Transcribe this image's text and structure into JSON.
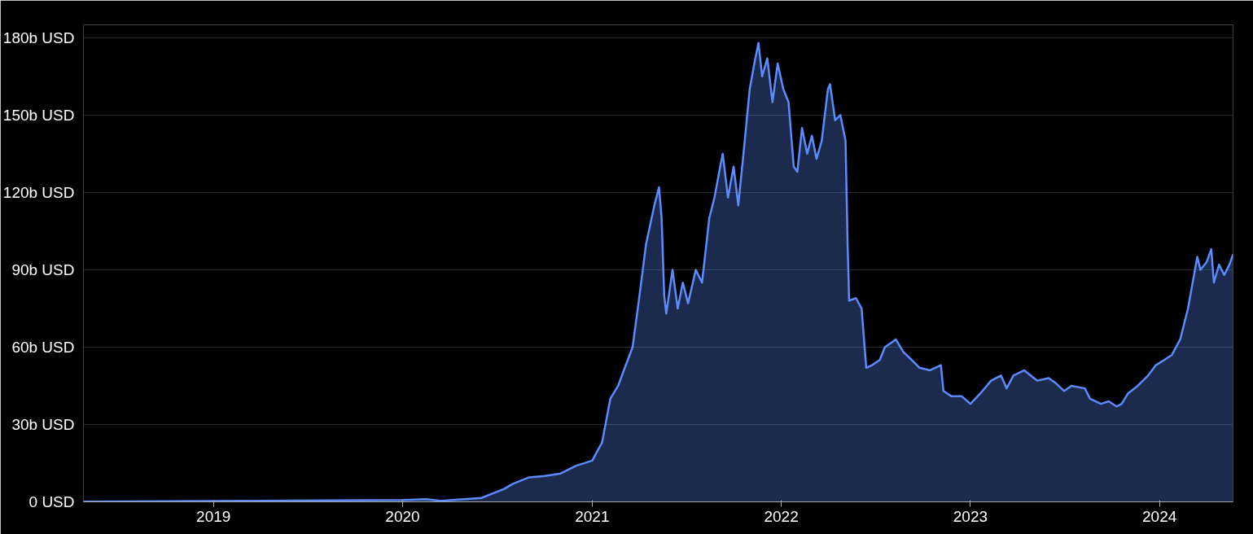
{
  "chart_data": {
    "type": "area",
    "grid": "y",
    "x": [
      "2018-04-25",
      "2019-01-01",
      "2020-01-01",
      "2020-02-15",
      "2020-03-15",
      "2020-06-01",
      "2020-07-15",
      "2020-08-01",
      "2020-09-01",
      "2020-10-01",
      "2020-11-01",
      "2020-12-01",
      "2021-01-01",
      "2021-01-20",
      "2021-02-05",
      "2021-02-20",
      "2021-03-05",
      "2021-03-20",
      "2021-04-01",
      "2021-04-15",
      "2021-05-01",
      "2021-05-10",
      "2021-05-15",
      "2021-05-20",
      "2021-05-24",
      "2021-06-05",
      "2021-06-15",
      "2021-06-25",
      "2021-07-05",
      "2021-07-20",
      "2021-08-01",
      "2021-08-15",
      "2021-08-25",
      "2021-09-05",
      "2021-09-10",
      "2021-09-20",
      "2021-10-01",
      "2021-10-10",
      "2021-10-20",
      "2021-11-01",
      "2021-11-10",
      "2021-11-18",
      "2021-11-25",
      "2021-12-05",
      "2021-12-15",
      "2021-12-25",
      "2022-01-05",
      "2022-01-15",
      "2022-01-25",
      "2022-02-01",
      "2022-02-10",
      "2022-02-20",
      "2022-03-01",
      "2022-03-10",
      "2022-03-20",
      "2022-04-01",
      "2022-04-05",
      "2022-04-15",
      "2022-04-25",
      "2022-05-05",
      "2022-05-09",
      "2022-05-12",
      "2022-05-25",
      "2022-06-05",
      "2022-06-14",
      "2022-06-25",
      "2022-07-10",
      "2022-07-20",
      "2022-08-10",
      "2022-08-25",
      "2022-09-10",
      "2022-09-25",
      "2022-10-15",
      "2022-11-05",
      "2022-11-10",
      "2022-11-25",
      "2022-12-15",
      "2023-01-01",
      "2023-01-20",
      "2023-02-10",
      "2023-03-01",
      "2023-03-12",
      "2023-03-25",
      "2023-04-15",
      "2023-05-10",
      "2023-06-01",
      "2023-06-15",
      "2023-07-01",
      "2023-07-15",
      "2023-08-10",
      "2023-08-20",
      "2023-09-10",
      "2023-09-25",
      "2023-10-10",
      "2023-10-20",
      "2023-11-01",
      "2023-11-20",
      "2023-12-10",
      "2023-12-25",
      "2024-01-10",
      "2024-01-25",
      "2024-02-10",
      "2024-02-25",
      "2024-03-05",
      "2024-03-14",
      "2024-03-20",
      "2024-04-01",
      "2024-04-10",
      "2024-04-15",
      "2024-04-25",
      "2024-05-05",
      "2024-05-15",
      "2024-05-22"
    ],
    "series": [
      {
        "color": "#5b8cff",
        "values": [
          0.1,
          0.3,
          0.7,
          1.0,
          0.4,
          1.5,
          5,
          7,
          9.5,
          10,
          11,
          14,
          16,
          23,
          40,
          45,
          52,
          60,
          78,
          100,
          115,
          122,
          110,
          80,
          73,
          90,
          75,
          85,
          77,
          90,
          85,
          110,
          118,
          130,
          135,
          118,
          130,
          115,
          135,
          160,
          170,
          178,
          165,
          172,
          155,
          170,
          160,
          155,
          130,
          128,
          145,
          135,
          142,
          133,
          140,
          160,
          162,
          148,
          150,
          140,
          100,
          78,
          79,
          75,
          52,
          53,
          55,
          60,
          63,
          58,
          55,
          52,
          51,
          53,
          43,
          41,
          41,
          38,
          42,
          47,
          49,
          44,
          49,
          51,
          47,
          48,
          46,
          43,
          45,
          44,
          40,
          38,
          39,
          37,
          38,
          42,
          45,
          49,
          53,
          55,
          57,
          63,
          75,
          85,
          95,
          90,
          93,
          98,
          85,
          92,
          88,
          92,
          96
        ]
      }
    ],
    "xlim": [
      "2018-04-25",
      "2024-05-22"
    ],
    "xticks": [
      {
        "value": "2019-01-01",
        "label": "2019"
      },
      {
        "value": "2020-01-01",
        "label": "2020"
      },
      {
        "value": "2021-01-01",
        "label": "2021"
      },
      {
        "value": "2022-01-01",
        "label": "2022"
      },
      {
        "value": "2023-01-01",
        "label": "2023"
      },
      {
        "value": "2024-01-01",
        "label": "2024"
      }
    ],
    "ylim": [
      0,
      185
    ],
    "yticks": [
      {
        "value": 0,
        "label": "0 USD"
      },
      {
        "value": 30,
        "label": "30b USD"
      },
      {
        "value": 60,
        "label": "60b USD"
      },
      {
        "value": 90,
        "label": "90b USD"
      },
      {
        "value": 120,
        "label": "120b USD"
      },
      {
        "value": 150,
        "label": "150b USD"
      },
      {
        "value": 180,
        "label": "180b USD"
      }
    ]
  }
}
